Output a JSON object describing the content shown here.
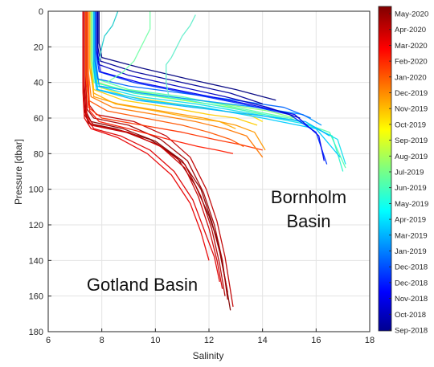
{
  "chart_data": {
    "type": "line",
    "title": "",
    "xlabel": "Salinity",
    "ylabel": "Pressure [dbar]",
    "xlim": [
      6,
      18
    ],
    "ylim": [
      0,
      180
    ],
    "y_reversed": true,
    "x_ticks": [
      6,
      8,
      10,
      12,
      14,
      16,
      18
    ],
    "y_ticks": [
      0,
      20,
      40,
      60,
      80,
      100,
      120,
      140,
      160,
      180
    ],
    "grid": true,
    "colormap": "jet",
    "colorbar_labels": [
      "May-2020",
      "Apr-2020",
      "Mar-2020",
      "Feb-2020",
      "Jan-2020",
      "Dec-2019",
      "Nov-2019",
      "Oct-2019",
      "Sep-2019",
      "Aug-2019",
      "Jul-2019",
      "Jun-2019",
      "May-2019",
      "Apr-2019",
      "Mar-2019",
      "Jan-2019",
      "Dec-2018",
      "Dec-2018",
      "Nov-2018",
      "Oct-2018",
      "Sep-2018"
    ],
    "annotations": [
      {
        "id": "bornholm",
        "lines": [
          "Bornholm",
          "Basin"
        ]
      },
      {
        "id": "gotland",
        "lines": [
          "Gotland Basin"
        ]
      }
    ],
    "series": [
      {
        "group": "gotland",
        "period": "May-2020",
        "color": "#800000",
        "x": [
          7.3,
          7.3,
          7.35,
          7.5,
          8.5,
          9.8,
          10.8,
          11.5,
          12.0,
          12.35,
          12.6,
          12.8
        ],
        "y": [
          0,
          40,
          55,
          63,
          66,
          72,
          82,
          98,
          115,
          130,
          150,
          168
        ]
      },
      {
        "group": "gotland",
        "period": "May-2020",
        "color": "#8b0000",
        "x": [
          7.35,
          7.35,
          7.4,
          7.6,
          8.8,
          10.0,
          11.0,
          11.7,
          12.1,
          12.4,
          12.7
        ],
        "y": [
          0,
          42,
          56,
          62,
          66,
          73,
          84,
          100,
          118,
          135,
          158
        ]
      },
      {
        "group": "gotland",
        "period": "Apr-2020",
        "color": "#a00000",
        "x": [
          7.4,
          7.4,
          7.45,
          7.7,
          9.0,
          10.2,
          11.2,
          11.8,
          12.2,
          12.5,
          12.7
        ],
        "y": [
          0,
          40,
          55,
          60,
          64,
          72,
          84,
          102,
          120,
          140,
          162
        ]
      },
      {
        "group": "gotland",
        "period": "Apr-2020",
        "color": "#b00000",
        "x": [
          7.3,
          7.3,
          7.35,
          7.6,
          8.9,
          10.1,
          11.1,
          11.7,
          12.1,
          12.4,
          12.6
        ],
        "y": [
          0,
          44,
          58,
          64,
          68,
          75,
          86,
          104,
          122,
          142,
          160
        ]
      },
      {
        "group": "gotland",
        "period": "Mar-2020",
        "color": "#c00000",
        "x": [
          7.45,
          7.45,
          7.5,
          7.8,
          9.2,
          10.4,
          11.3,
          11.9,
          12.3,
          12.6,
          12.9
        ],
        "y": [
          0,
          38,
          52,
          58,
          62,
          70,
          82,
          100,
          118,
          138,
          166
        ]
      },
      {
        "group": "gotland",
        "period": "Mar-2020",
        "color": "#cc0000",
        "x": [
          7.35,
          7.35,
          7.4,
          7.7,
          9.0,
          10.2,
          11.1,
          11.6,
          12.0,
          12.3,
          12.5
        ],
        "y": [
          0,
          42,
          58,
          64,
          68,
          76,
          88,
          104,
          122,
          140,
          156
        ]
      },
      {
        "group": "gotland",
        "period": "Feb-2020",
        "color": "#dd0000",
        "x": [
          7.4,
          7.4,
          7.45,
          7.7,
          8.7,
          9.8,
          10.7,
          11.4,
          11.8,
          12.2,
          12.4
        ],
        "y": [
          0,
          44,
          60,
          66,
          70,
          78,
          90,
          106,
          122,
          138,
          152
        ]
      },
      {
        "group": "gotland",
        "period": "Feb-2020",
        "color": "#e80000",
        "x": [
          7.3,
          7.3,
          7.35,
          7.6,
          8.6,
          9.7,
          10.6,
          11.3,
          11.7,
          12.0
        ],
        "y": [
          0,
          46,
          60,
          66,
          71,
          80,
          92,
          108,
          124,
          140
        ]
      },
      {
        "group": "gotland",
        "period": "Jan-2020",
        "color": "#ff1a00",
        "x": [
          7.5,
          7.5,
          7.55,
          7.9,
          9.0,
          10.5,
          11.6,
          12.3,
          12.9
        ],
        "y": [
          0,
          40,
          56,
          62,
          66,
          72,
          76,
          78,
          80
        ]
      },
      {
        "group": "gotland",
        "period": "Jan-2020",
        "color": "#ff3300",
        "x": [
          7.45,
          7.45,
          7.5,
          8.0,
          9.5,
          11.0,
          12.2,
          13.2,
          14.0
        ],
        "y": [
          0,
          38,
          54,
          60,
          64,
          68,
          72,
          75,
          78
        ]
      },
      {
        "group": "gotland",
        "period": "Dec-2019",
        "color": "#ff5500",
        "x": [
          7.4,
          7.4,
          7.5,
          8.2,
          9.6,
          11.0,
          12.0,
          12.8,
          13.3
        ],
        "y": [
          0,
          36,
          50,
          56,
          60,
          64,
          68,
          72,
          76
        ]
      },
      {
        "group": "gotland",
        "period": "Dec-2019",
        "color": "#ff7700",
        "x": [
          7.5,
          7.5,
          7.6,
          8.4,
          10.0,
          11.5,
          12.6,
          13.4,
          14.0
        ],
        "y": [
          0,
          34,
          48,
          54,
          58,
          62,
          66,
          70,
          82
        ]
      },
      {
        "group": "gotland",
        "period": "Nov-2019",
        "color": "#ff9900",
        "x": [
          7.6,
          7.6,
          7.7,
          8.6,
          10.2,
          11.8,
          13.0,
          13.7,
          14.1
        ],
        "y": [
          0,
          34,
          48,
          52,
          56,
          60,
          64,
          68,
          78
        ]
      },
      {
        "group": "gotland",
        "period": "Nov-2019",
        "color": "#ffaa00",
        "x": [
          7.55,
          7.55,
          7.7,
          8.5,
          10.0,
          11.4,
          12.4,
          13.0
        ],
        "y": [
          0,
          32,
          46,
          52,
          56,
          60,
          62,
          66
        ]
      },
      {
        "group": "gotland",
        "period": "Oct-2019",
        "color": "#ffcc00",
        "x": [
          7.6,
          7.6,
          7.7,
          8.8,
          10.5,
          12.0,
          13.0,
          13.8
        ],
        "y": [
          0,
          30,
          44,
          50,
          54,
          58,
          60,
          64
        ]
      },
      {
        "group": "gotland",
        "period": "Sep-2019",
        "color": "#ffe000",
        "x": [
          7.65,
          7.65,
          7.8,
          9.0,
          10.8,
          12.5,
          13.5,
          14.0
        ],
        "y": [
          0,
          28,
          42,
          48,
          52,
          56,
          58,
          62
        ]
      },
      {
        "group": "gotland",
        "period": "Aug-2019",
        "color": "#ccff33",
        "x": [
          7.7,
          7.7,
          7.85,
          9.2,
          11.0,
          12.8,
          14.0
        ],
        "y": [
          0,
          26,
          40,
          46,
          50,
          54,
          58
        ]
      },
      {
        "group": "bornholm",
        "period": "Jul-2019",
        "color": "#88ff77",
        "x": [
          7.6,
          7.6,
          7.7,
          8.8,
          10.6,
          12.5,
          14.2,
          15.2
        ],
        "y": [
          0,
          28,
          40,
          44,
          48,
          52,
          56,
          60
        ]
      },
      {
        "group": "bornholm",
        "period": "Jun-2019",
        "color": "#55ffaa",
        "x": [
          7.7,
          7.7,
          7.8,
          9.0,
          11.0,
          13.0,
          15.0,
          16.5,
          17.1
        ],
        "y": [
          0,
          26,
          38,
          44,
          48,
          54,
          60,
          68,
          88
        ]
      },
      {
        "group": "bornholm",
        "period": "Jun-2019",
        "color": "#33f5cc",
        "x": [
          7.65,
          7.65,
          7.75,
          9.2,
          11.2,
          13.4,
          15.4,
          16.6,
          17.0
        ],
        "y": [
          0,
          28,
          40,
          46,
          50,
          56,
          62,
          70,
          90
        ]
      },
      {
        "group": "bornholm",
        "period": "May-2019",
        "color": "#11e0ee",
        "x": [
          7.7,
          7.7,
          7.8,
          9.4,
          11.5,
          13.8,
          15.8,
          16.8,
          17.1
        ],
        "y": [
          0,
          30,
          42,
          48,
          52,
          58,
          64,
          72,
          86
        ]
      },
      {
        "group": "bornholm",
        "period": "May-2019",
        "color": "#00ccff",
        "x": [
          7.75,
          7.75,
          7.85,
          9.6,
          11.8,
          14.0,
          16.0,
          16.9
        ],
        "y": [
          0,
          32,
          44,
          50,
          54,
          60,
          66,
          82
        ]
      },
      {
        "group": "bornholm",
        "period": "Apr-2019",
        "color": "#00b4ff",
        "x": [
          7.7,
          7.7,
          7.8,
          9.3,
          11.4,
          13.6,
          15.6,
          16.5
        ],
        "y": [
          0,
          32,
          44,
          50,
          54,
          58,
          62,
          70
        ]
      },
      {
        "group": "bornholm",
        "period": "Mar-2019",
        "color": "#0099ff",
        "x": [
          7.8,
          7.8,
          7.9,
          9.5,
          11.6,
          13.8,
          15.5,
          16.2
        ],
        "y": [
          0,
          30,
          42,
          46,
          50,
          54,
          58,
          64
        ]
      },
      {
        "group": "bornholm",
        "period": "Jan-2019",
        "color": "#0066ff",
        "x": [
          7.75,
          7.75,
          7.85,
          9.0,
          11.0,
          13.0,
          14.8,
          15.8
        ],
        "y": [
          0,
          28,
          38,
          42,
          46,
          50,
          54,
          60
        ]
      },
      {
        "group": "bornholm",
        "period": "Dec-2018",
        "color": "#0033ff",
        "x": [
          7.8,
          7.8,
          7.9,
          9.2,
          11.2,
          13.2,
          15.0,
          16.0,
          16.4
        ],
        "y": [
          0,
          24,
          34,
          40,
          46,
          52,
          58,
          68,
          86
        ]
      },
      {
        "group": "bornholm",
        "period": "Dec-2018",
        "color": "#0000ee",
        "x": [
          7.85,
          7.85,
          7.95,
          9.4,
          11.4,
          13.4,
          15.2,
          16.1,
          16.3
        ],
        "y": [
          0,
          24,
          34,
          40,
          46,
          52,
          58,
          70,
          84
        ]
      },
      {
        "group": "bornholm",
        "period": "Nov-2018",
        "color": "#0000c0",
        "x": [
          7.8,
          7.8,
          7.9,
          9.0,
          10.8,
          12.6,
          14.2,
          15.4
        ],
        "y": [
          0,
          22,
          30,
          36,
          42,
          48,
          54,
          60
        ]
      },
      {
        "group": "bornholm",
        "period": "Oct-2018",
        "color": "#000099",
        "x": [
          7.85,
          7.85,
          7.95,
          9.2,
          11.0,
          12.8,
          14.0
        ],
        "y": [
          0,
          20,
          28,
          34,
          40,
          46,
          52
        ]
      },
      {
        "group": "bornholm",
        "period": "Sep-2018",
        "color": "#000080",
        "x": [
          7.9,
          7.9,
          8.0,
          9.5,
          11.2,
          13.0,
          14.5
        ],
        "y": [
          0,
          18,
          26,
          32,
          38,
          44,
          50
        ]
      },
      {
        "group": "surface",
        "period": "Jun-2019",
        "color": "#77ffaa",
        "x": [
          9.8,
          9.8,
          9.6,
          9.4,
          9.2,
          8.8,
          8.2
        ],
        "y": [
          0,
          10,
          16,
          22,
          28,
          34,
          40
        ]
      },
      {
        "group": "surface",
        "period": "Jun-2019",
        "color": "#66eecc",
        "x": [
          11.5,
          11.3,
          11.0,
          10.8,
          10.6,
          10.4,
          10.4,
          10.5
        ],
        "y": [
          2,
          8,
          14,
          20,
          26,
          30,
          40,
          48
        ]
      },
      {
        "group": "surface",
        "period": "May-2019",
        "color": "#22cccc",
        "x": [
          8.6,
          8.4,
          8.1,
          8.0,
          7.9
        ],
        "y": [
          0,
          8,
          14,
          20,
          28
        ]
      }
    ]
  }
}
